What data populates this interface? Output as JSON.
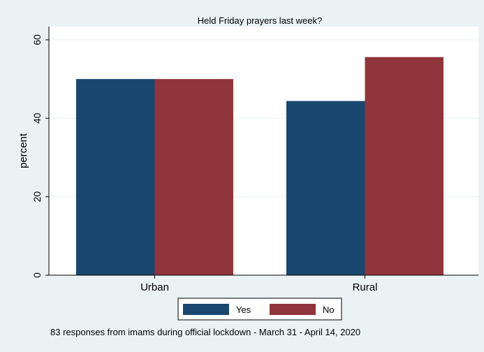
{
  "chart_data": {
    "type": "bar",
    "title": "Held Friday prayers last week?",
    "ylabel": "percent",
    "xlabel": "",
    "categories": [
      "Urban",
      "Rural"
    ],
    "series": [
      {
        "name": "Yes",
        "color": "#1a476f",
        "values": [
          50,
          44.4
        ]
      },
      {
        "name": "No",
        "color": "#90353b",
        "values": [
          50,
          55.6
        ]
      }
    ],
    "ylim": [
      0,
      60
    ],
    "yticks": [
      0,
      20,
      40,
      60
    ],
    "grid": true,
    "legend_position": "bottom",
    "note": "83 responses from imams during official lockdown - March 31 - April 14, 2020"
  }
}
